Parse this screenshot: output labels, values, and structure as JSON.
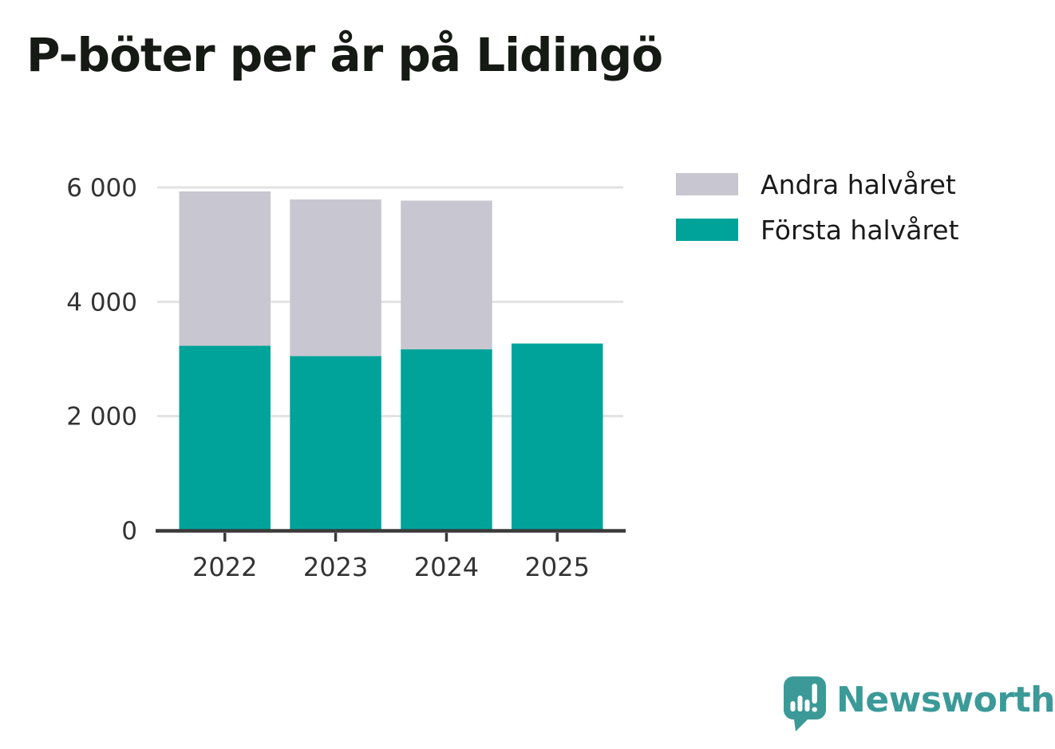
{
  "title": "P-böter per år på Lidingö",
  "legend": [
    {
      "label": "Andra halvåret",
      "color": "#c8c6d0"
    },
    {
      "label": "Första halvåret",
      "color": "#00a39a"
    }
  ],
  "footer": {
    "brand": "Newsworthy",
    "logo_icon": "speech-bubble-bar-chart-icon"
  },
  "colors": {
    "first_half": "#00a39a",
    "second_half": "#c8c6d0",
    "axis": "#3a3a3a",
    "axis_label": "#333333",
    "gridline": "#e2e2e2",
    "title_text": "#161a15",
    "brand_teal": "#3b9a98",
    "background": "#ffffff"
  },
  "chart_data": {
    "type": "bar",
    "stacked": true,
    "title": "P-böter per år på Lidingö",
    "categories": [
      "2022",
      "2023",
      "2024",
      "2025"
    ],
    "series": [
      {
        "name": "Första halvåret",
        "color": "#00a39a",
        "values": [
          3230,
          3050,
          3170,
          3270
        ]
      },
      {
        "name": "Andra halvåret",
        "color": "#c8c6d0",
        "values": [
          2700,
          2740,
          2600,
          null
        ]
      }
    ],
    "totals": [
      5930,
      5790,
      5770,
      3270
    ],
    "xlabel": "",
    "ylabel": "",
    "ylim": [
      0,
      6000
    ],
    "yticks": [
      0,
      2000,
      4000,
      6000
    ],
    "ytick_labels": [
      "0",
      "2 000",
      "4 000",
      "6 000"
    ],
    "grid": true,
    "legend_position": "right-top",
    "legend_order": [
      "Andra halvåret",
      "Första halvåret"
    ]
  }
}
